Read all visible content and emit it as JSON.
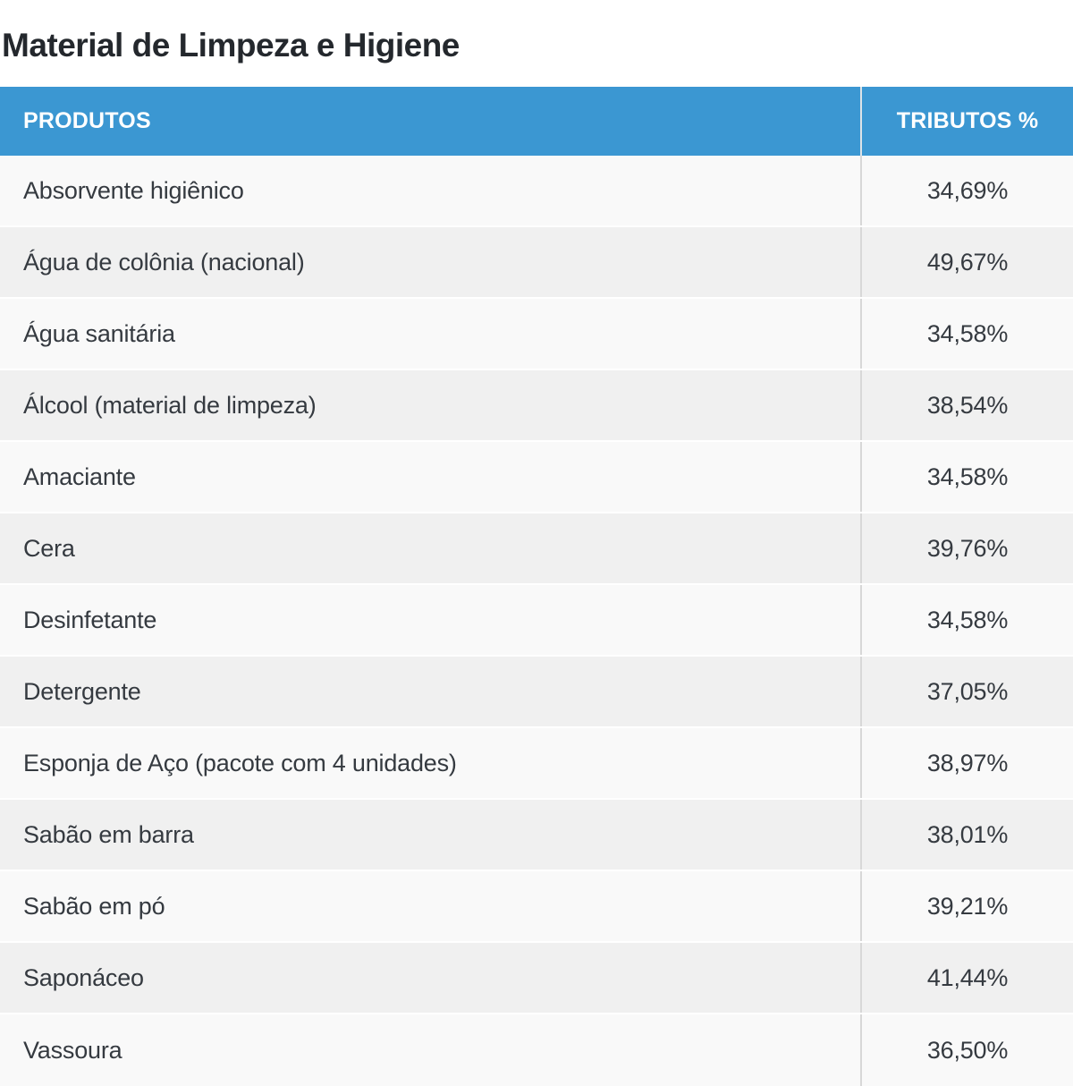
{
  "page": {
    "title": "Material de Limpeza e Higiene"
  },
  "table": {
    "columns": [
      {
        "label": "PRODUTOS",
        "align": "left"
      },
      {
        "label": "TRIBUTOS %",
        "align": "center"
      }
    ],
    "rows": [
      {
        "produto": "Absorvente higiênico",
        "tributos": "34,69%"
      },
      {
        "produto": "Água de colônia (nacional)",
        "tributos": "49,67%"
      },
      {
        "produto": "Água sanitária",
        "tributos": "34,58%"
      },
      {
        "produto": "Álcool (material de limpeza)",
        "tributos": "38,54%"
      },
      {
        "produto": "Amaciante",
        "tributos": "34,58%"
      },
      {
        "produto": "Cera",
        "tributos": "39,76%"
      },
      {
        "produto": "Desinfetante",
        "tributos": "34,58%"
      },
      {
        "produto": "Detergente",
        "tributos": "37,05%"
      },
      {
        "produto": "Esponja de Aço (pacote com 4 unidades)",
        "tributos": "38,97%"
      },
      {
        "produto": "Sabão em barra",
        "tributos": "38,01%"
      },
      {
        "produto": "Sabão em pó",
        "tributos": "39,21%"
      },
      {
        "produto": "Saponáceo",
        "tributos": "41,44%"
      },
      {
        "produto": "Vassoura",
        "tributos": "36,50%"
      }
    ]
  },
  "colors": {
    "header_bg": "#3b97d2",
    "header_text": "#ffffff",
    "row_odd_bg": "#f9f9f9",
    "row_even_bg": "#f0f0f0",
    "divider": "#d8d8d8",
    "divider_header": "#dde3e7",
    "title_text": "#24282d",
    "row_text": "#353a40"
  }
}
